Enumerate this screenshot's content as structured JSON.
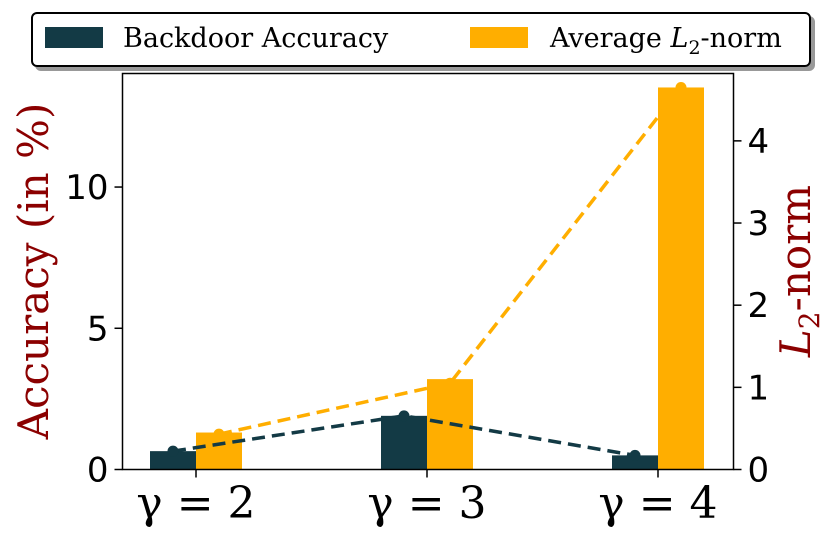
{
  "chart_data": {
    "type": "bar",
    "categories": [
      "γ = 2",
      "γ = 3",
      "γ = 4"
    ],
    "series": [
      {
        "name": "Backdoor Accuracy",
        "axis": "left",
        "values": [
          0.65,
          1.9,
          0.5
        ],
        "color": "#133a45"
      },
      {
        "name": "Average L2-norm",
        "axis": "right",
        "values": [
          0.45,
          1.1,
          4.65
        ],
        "line_values": [
          0.43,
          1.05,
          4.65
        ],
        "color": "#ffae00"
      }
    ],
    "ylabel": "Accuracy (in %)",
    "ylabel_color": "#8b0000",
    "y2label": "L2-norm",
    "ylim": [
      0,
      14.02
    ],
    "y2lim": [
      0,
      4.82
    ],
    "yticks": [
      0,
      5,
      10
    ],
    "y2ticks": [
      0,
      1,
      2,
      3,
      4
    ],
    "grid": false,
    "legend_placement": "top-center, above plot"
  }
}
